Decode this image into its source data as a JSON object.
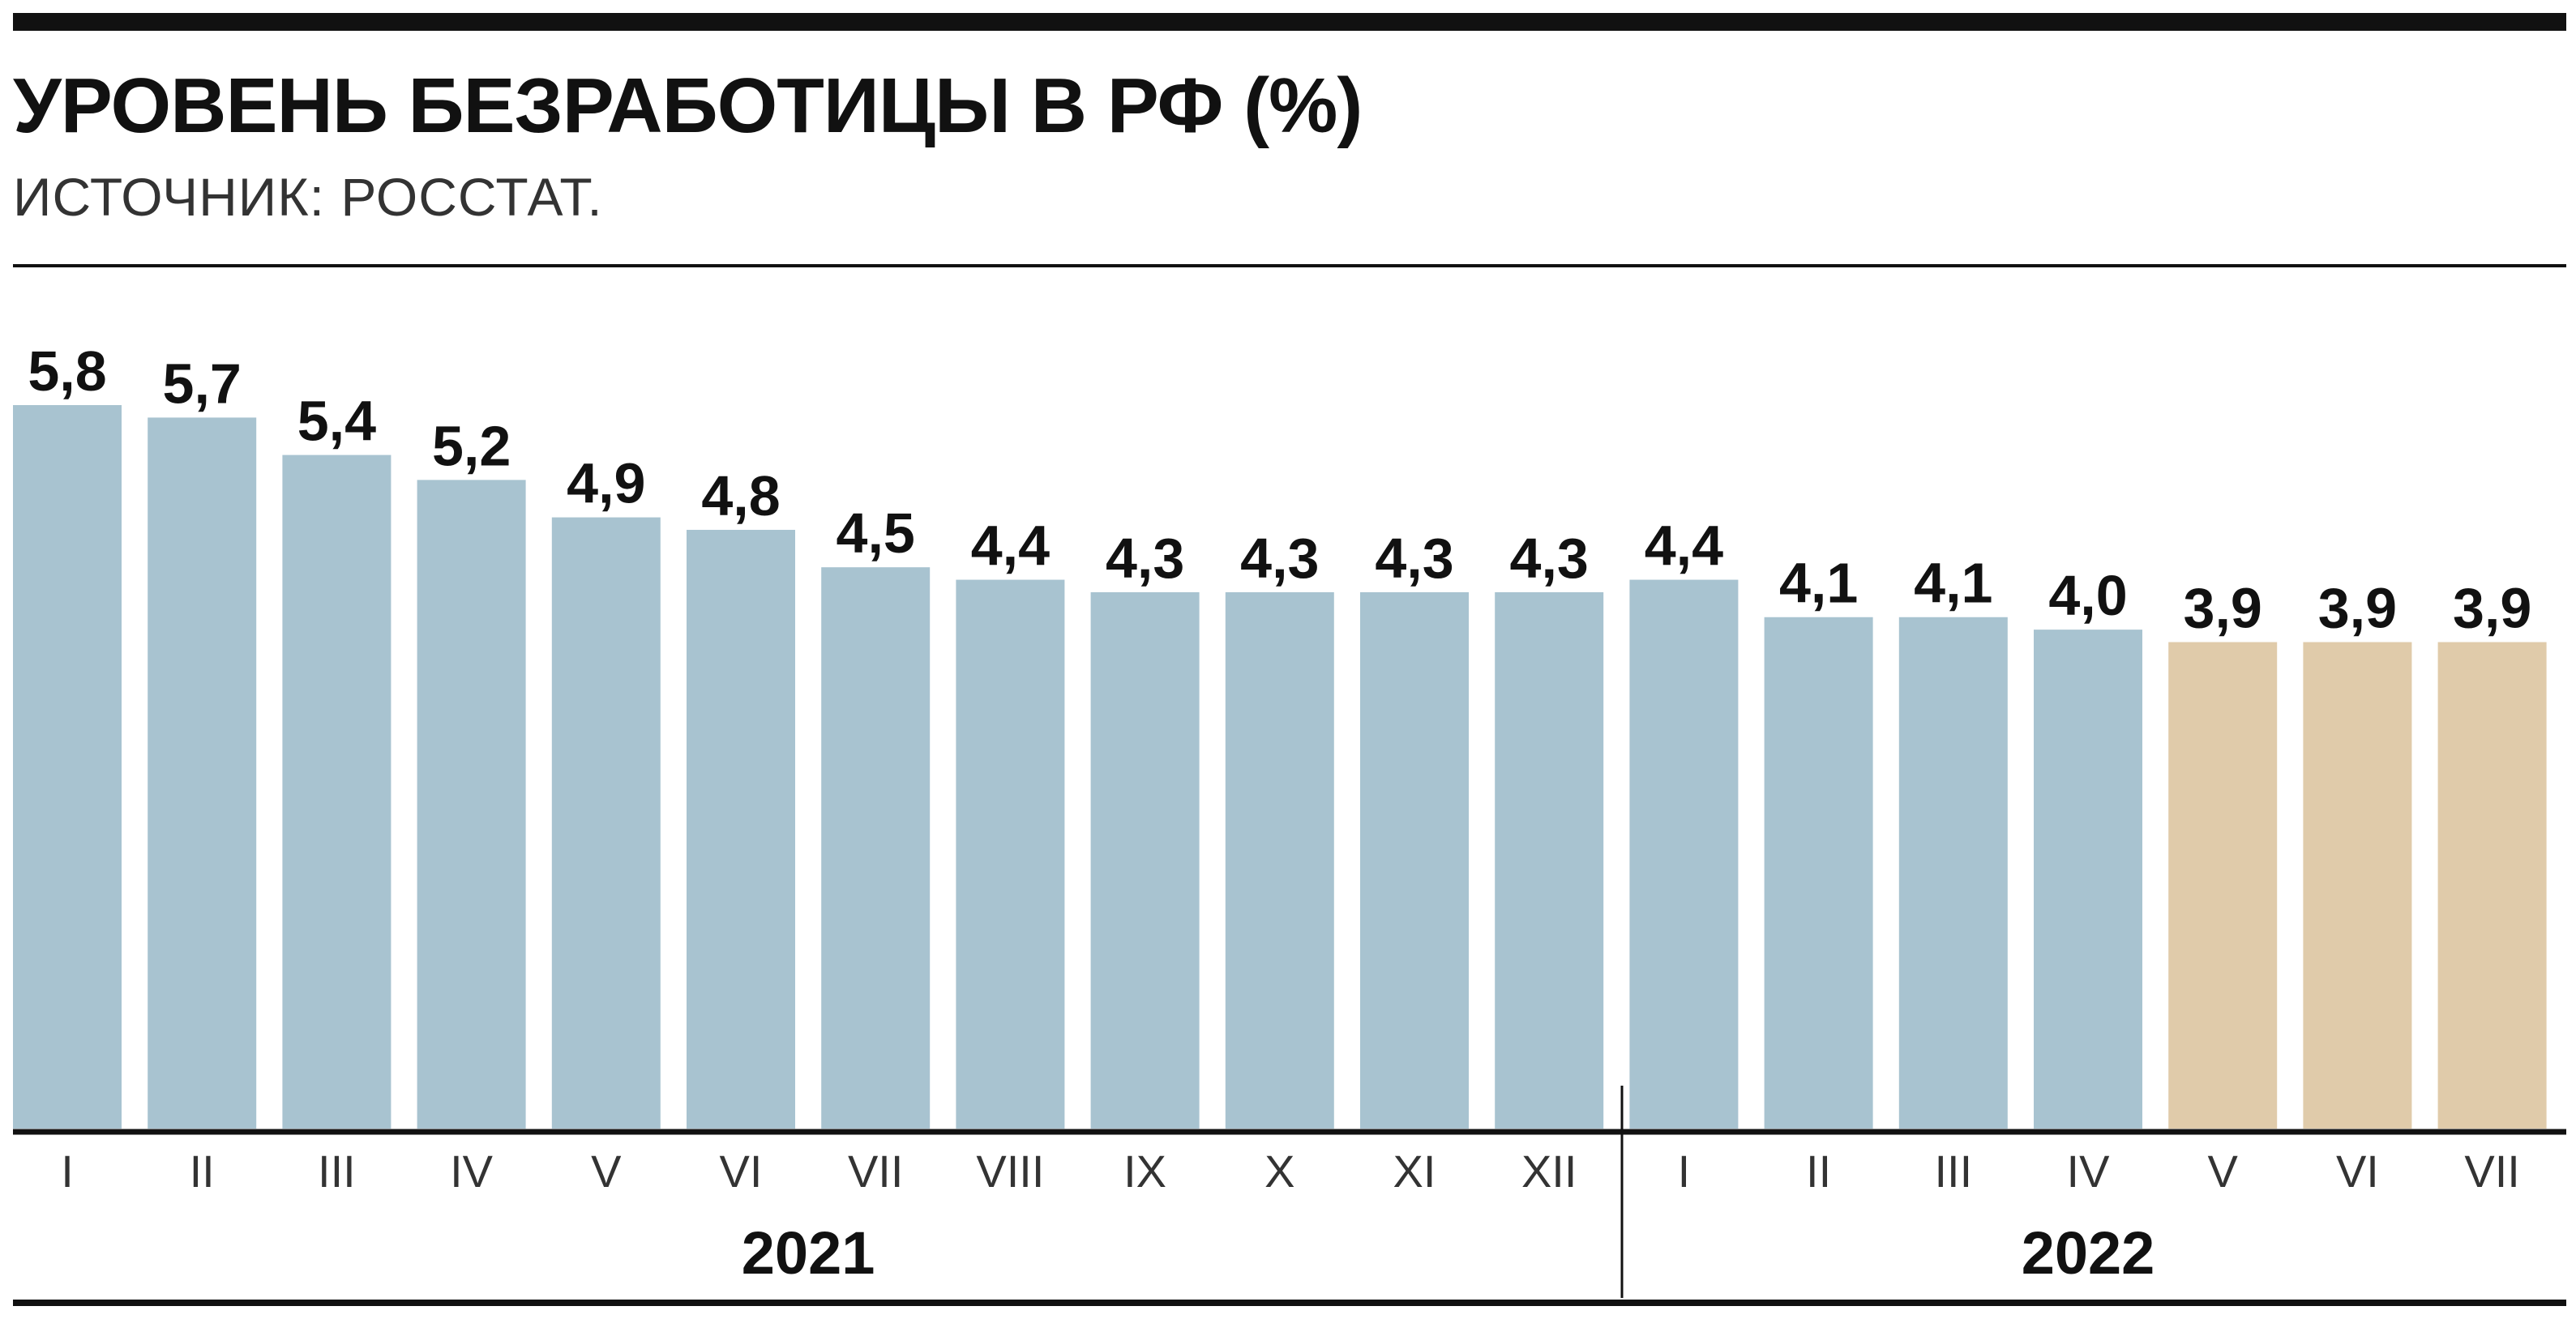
{
  "header": {
    "title": "УРОВЕНЬ БЕЗРАБОТИЦЫ В РФ (%)",
    "source": "ИСТОЧНИК: РОССТАТ."
  },
  "colors": {
    "actual": "#a8c3d0",
    "highlight": "#e0cbaa",
    "text": "#111111"
  },
  "chart_data": {
    "type": "bar",
    "title": "УРОВЕНЬ БЕЗРАБОТИЦЫ В РФ (%)",
    "subtitle": "ИСТОЧНИК: РОССТАТ.",
    "xlabel": "",
    "ylabel": "",
    "ylim": [
      0,
      5.8
    ],
    "grid": false,
    "categories": [
      "I",
      "II",
      "III",
      "IV",
      "V",
      "VI",
      "VII",
      "VIII",
      "IX",
      "X",
      "XI",
      "XII",
      "I",
      "II",
      "III",
      "IV",
      "V",
      "VI",
      "VII"
    ],
    "values": [
      5.8,
      5.7,
      5.4,
      5.2,
      4.9,
      4.8,
      4.5,
      4.4,
      4.3,
      4.3,
      4.3,
      4.3,
      4.4,
      4.1,
      4.1,
      4.0,
      3.9,
      3.9,
      3.9
    ],
    "value_labels": [
      "5,8",
      "5,7",
      "5,4",
      "5,2",
      "4,9",
      "4,8",
      "4,5",
      "4,4",
      "4,3",
      "4,3",
      "4,3",
      "4,3",
      "4,4",
      "4,1",
      "4,1",
      "4,0",
      "3,9",
      "3,9",
      "3,9"
    ],
    "bar_color_keys": [
      "actual",
      "actual",
      "actual",
      "actual",
      "actual",
      "actual",
      "actual",
      "actual",
      "actual",
      "actual",
      "actual",
      "actual",
      "actual",
      "actual",
      "actual",
      "actual",
      "highlight",
      "highlight",
      "highlight"
    ],
    "groups": [
      {
        "label": "2021",
        "count": 12
      },
      {
        "label": "2022",
        "count": 7
      }
    ]
  }
}
